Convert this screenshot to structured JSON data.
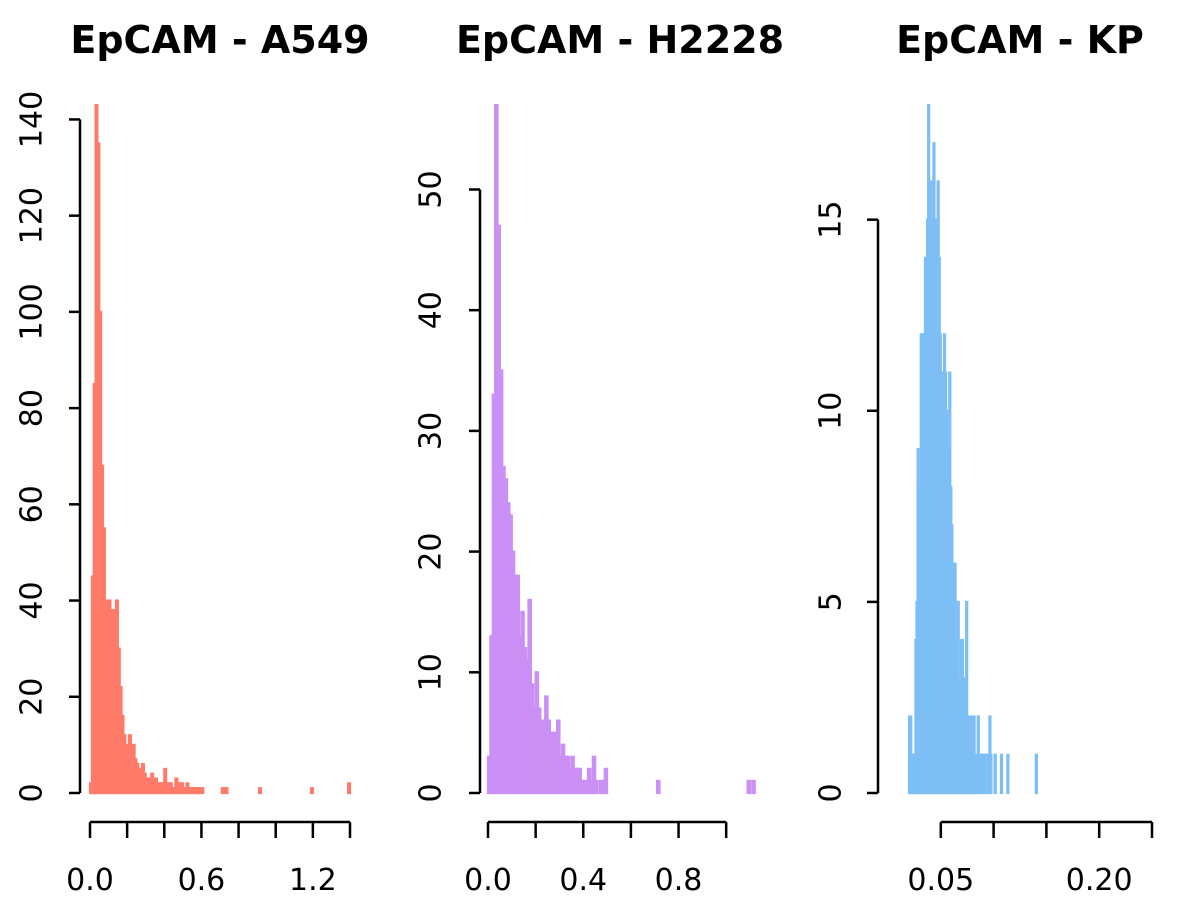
{
  "chart_data": [
    {
      "type": "bar",
      "title": "EpCAM - A549",
      "color": "#FF7B69",
      "xlabel": "",
      "ylabel": "",
      "xlim": [
        0,
        1.4
      ],
      "ylim": [
        0,
        143
      ],
      "x_ticks": [
        0.0,
        0.2,
        0.4,
        0.6,
        0.8,
        1.0,
        1.2,
        1.4
      ],
      "x_tick_labels": [
        "0.0",
        "",
        "",
        "0.6",
        "",
        "",
        "1.2",
        ""
      ],
      "y_ticks": [
        0,
        20,
        40,
        60,
        80,
        100,
        120,
        140
      ],
      "y_tick_labels": [
        "0",
        "20",
        "40",
        "60",
        "80",
        "100",
        "120",
        "140"
      ],
      "bin_width": 0.01,
      "values": [
        2,
        45,
        85,
        143,
        135,
        100,
        68,
        55,
        40,
        35,
        40,
        37,
        38,
        25,
        40,
        30,
        22,
        16,
        12,
        10,
        9,
        12,
        8,
        10,
        7,
        6,
        5,
        4,
        6,
        4,
        3,
        3,
        3,
        4,
        2,
        3,
        2,
        2,
        2,
        2,
        5,
        2,
        2,
        2,
        1,
        1,
        3,
        2,
        2,
        2,
        1,
        1,
        2,
        1,
        1,
        1,
        1,
        1,
        1,
        1,
        1,
        0,
        0,
        0,
        0,
        0,
        0,
        0,
        0,
        0,
        0,
        1,
        1,
        1,
        0,
        0,
        0,
        0,
        0,
        0,
        0,
        0,
        0,
        0,
        0,
        0,
        0,
        0,
        0,
        0,
        0,
        1,
        0,
        0,
        0,
        0,
        0,
        0,
        0,
        0,
        0,
        0,
        0,
        0,
        0,
        0,
        0,
        0,
        0,
        0,
        0,
        0,
        0,
        0,
        0,
        0,
        0,
        0,
        0,
        1,
        0,
        0,
        0,
        0,
        0,
        0,
        0,
        0,
        0,
        0,
        0,
        0,
        0,
        0,
        0,
        0,
        0,
        0,
        0,
        2
      ]
    },
    {
      "type": "bar",
      "title": "EpCAM - H2228",
      "color": "#CB90F5",
      "xlabel": "",
      "ylabel": "",
      "xlim": [
        0,
        1.1
      ],
      "ylim": [
        0,
        57
      ],
      "x_ticks": [
        0.0,
        0.2,
        0.4,
        0.6,
        0.8,
        1.0
      ],
      "x_tick_labels": [
        "0.0",
        "",
        "0.4",
        "",
        "0.8",
        ""
      ],
      "y_ticks": [
        0,
        10,
        20,
        30,
        40,
        50
      ],
      "y_tick_labels": [
        "0",
        "10",
        "20",
        "30",
        "40",
        "50"
      ],
      "bin_width": 0.01,
      "values": [
        3,
        13,
        33,
        57,
        47,
        35,
        27,
        26,
        24,
        23,
        20,
        18,
        18,
        13,
        15,
        12,
        11,
        16,
        9,
        7,
        10,
        7,
        6,
        6,
        8,
        6,
        5,
        5,
        5,
        6,
        3,
        4,
        3,
        3,
        2,
        3,
        2,
        2,
        2,
        1,
        1,
        1,
        2,
        1,
        3,
        1,
        0,
        1,
        1,
        2,
        0,
        0,
        0,
        0,
        0,
        0,
        0,
        0,
        0,
        0,
        0,
        0,
        0,
        0,
        0,
        0,
        0,
        0,
        0,
        0,
        0,
        1,
        0,
        0,
        0,
        0,
        0,
        0,
        0,
        0,
        0,
        0,
        0,
        0,
        0,
        0,
        0,
        0,
        0,
        0,
        0,
        0,
        0,
        0,
        0,
        0,
        0,
        0,
        0,
        0,
        0,
        0,
        0,
        0,
        0,
        0,
        0,
        0,
        0,
        1,
        0,
        1
      ]
    },
    {
      "type": "bar",
      "title": "EpCAM - KP",
      "color": "#7DBFF5",
      "xlabel": "",
      "ylabel": "",
      "xlim": [
        0.0,
        0.25
      ],
      "ylim": [
        0,
        18
      ],
      "x_ticks": [
        0.05,
        0.1,
        0.15,
        0.2,
        0.25
      ],
      "x_tick_labels": [
        "0.05",
        "",
        "",
        "0.20",
        ""
      ],
      "y_ticks": [
        0,
        5,
        10,
        15
      ],
      "y_tick_labels": [
        "0",
        "5",
        "10",
        "15"
      ],
      "x_start": 0.02,
      "bin_width": 0.001,
      "values": [
        2,
        2,
        1,
        1,
        1,
        1,
        4,
        5,
        9,
        6,
        8,
        12,
        11,
        12,
        10,
        14,
        13,
        15,
        18,
        16,
        14,
        15,
        16,
        17,
        15,
        14,
        13,
        16,
        14,
        12,
        11,
        10,
        9,
        12,
        11,
        10,
        8,
        9,
        11,
        8,
        7,
        6,
        5,
        6,
        4,
        3,
        5,
        2,
        3,
        4,
        4,
        3,
        2,
        3,
        5,
        2,
        1,
        2,
        1,
        2,
        1,
        2,
        1,
        1,
        1,
        2,
        1,
        0,
        0,
        1,
        1,
        1,
        0,
        0,
        1,
        1,
        2,
        1,
        0,
        0,
        0,
        1,
        0,
        0,
        0,
        0,
        0,
        1,
        0,
        0,
        0,
        0,
        0,
        1,
        0,
        0,
        0,
        0,
        0,
        0,
        0,
        0,
        0,
        0,
        0,
        0,
        0,
        0,
        0,
        0,
        0,
        0,
        0,
        0,
        0,
        0,
        0,
        0,
        0,
        0,
        1
      ]
    }
  ]
}
